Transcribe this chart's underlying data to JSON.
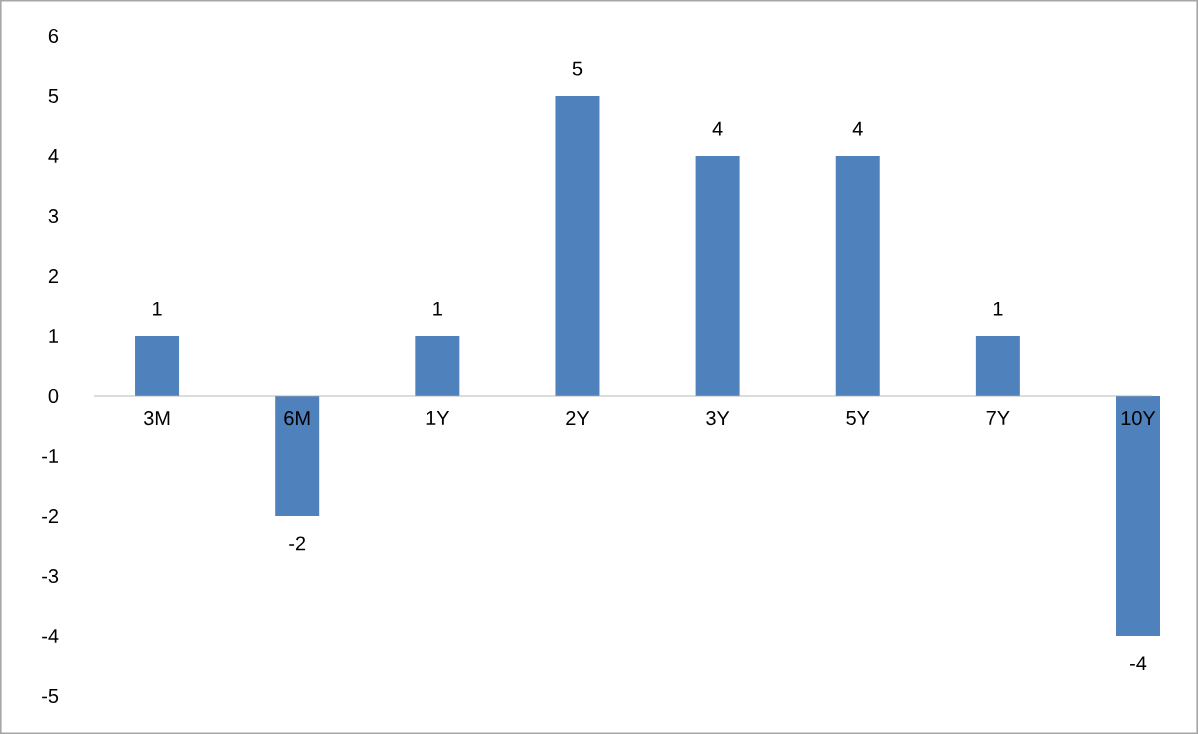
{
  "chart_data": {
    "type": "bar",
    "categories": [
      "3M",
      "6M",
      "1Y",
      "2Y",
      "3Y",
      "5Y",
      "7Y",
      "10Y"
    ],
    "values": [
      1,
      -2,
      1,
      5,
      4,
      4,
      1,
      -4
    ],
    "color": "#4f81bd",
    "ylim": [
      -5,
      6
    ],
    "yticks": [
      -5,
      -4,
      -3,
      -2,
      -1,
      0,
      1,
      2,
      3,
      4,
      5,
      6
    ],
    "grid": false,
    "data_labels": true
  }
}
